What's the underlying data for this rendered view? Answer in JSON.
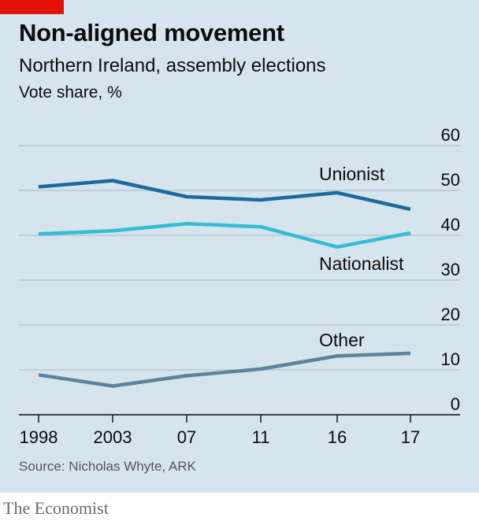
{
  "header": {
    "title": "Non-aligned movement",
    "subtitle": "Northern Ireland, assembly elections",
    "unit": "Vote share, %"
  },
  "footer": {
    "source": "Source: Nicholas Whyte, ARK",
    "brand": "The Economist"
  },
  "colors": {
    "background": "#d6e4ee",
    "accent": "#e3120b",
    "unionist": "#1a6b9e",
    "nationalist": "#34bdd3",
    "other": "#5e8499",
    "grid": "#b7c6d0",
    "axis": "#0c0c0c"
  },
  "chart_data": {
    "type": "line",
    "title": "Non-aligned movement",
    "subtitle": "Northern Ireland, assembly elections",
    "ylabel": "Vote share, %",
    "x": [
      "1998",
      "2003",
      "07",
      "11",
      "16",
      "17"
    ],
    "ylim": [
      0,
      60
    ],
    "yticks": [
      0,
      10,
      20,
      30,
      40,
      50,
      60
    ],
    "grid": true,
    "series": [
      {
        "name": "Unionist",
        "values": [
          50.8,
          52.2,
          48.6,
          47.9,
          49.5,
          45.8
        ]
      },
      {
        "name": "Nationalist",
        "values": [
          40.3,
          41.0,
          42.6,
          41.9,
          37.4,
          40.5
        ]
      },
      {
        "name": "Other",
        "values": [
          8.9,
          6.4,
          8.7,
          10.2,
          13.1,
          13.7
        ]
      }
    ]
  }
}
